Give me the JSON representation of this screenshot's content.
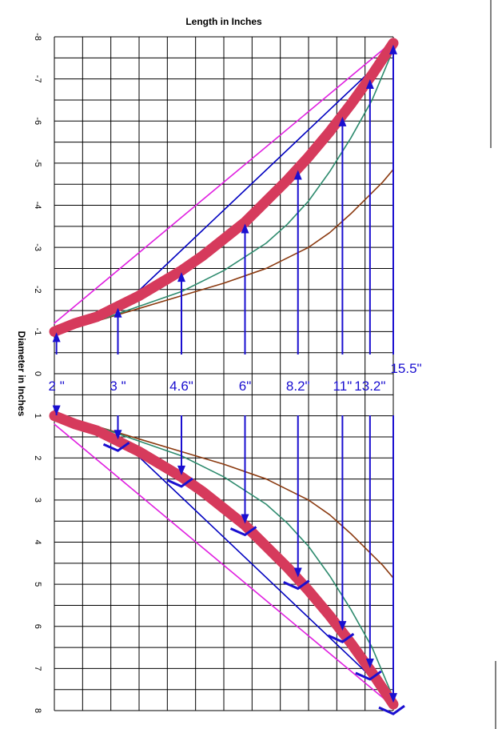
{
  "chart_data": {
    "type": "line",
    "title": "Length in Inches",
    "ylabel": "Diameter in Inches",
    "xlim": [
      0,
      16
    ],
    "ylim": [
      8,
      -8
    ],
    "y_ticks": [
      "8",
      "7",
      "6",
      "5",
      "4",
      "3",
      "2",
      "1",
      "0",
      "-1",
      "-2",
      "-3",
      "-4",
      "-5",
      "-6",
      "-7",
      "-8"
    ],
    "grid": true,
    "series": [
      {
        "color": "#d63a5c",
        "x": [
          0,
          1,
          2,
          3,
          4,
          5,
          6,
          7,
          8,
          9,
          10,
          11,
          12,
          13,
          14,
          15,
          16
        ],
        "values": [
          1.0,
          1.2,
          1.35,
          1.6,
          1.85,
          2.15,
          2.45,
          2.8,
          3.2,
          3.6,
          4.1,
          4.6,
          5.15,
          5.75,
          6.4,
          7.1,
          7.85
        ]
      },
      {
        "color": "#2e8b6e",
        "x": [
          0,
          2,
          4,
          6,
          8,
          10,
          11,
          12,
          13,
          14,
          15,
          16
        ],
        "values": [
          1.0,
          1.25,
          1.6,
          1.95,
          2.45,
          3.1,
          3.55,
          4.1,
          4.8,
          5.6,
          6.5,
          7.7
        ]
      },
      {
        "color": "#8b3a10",
        "x": [
          0,
          2,
          4,
          6,
          8,
          10,
          12,
          13,
          14,
          15,
          15.5,
          16
        ],
        "values": [
          1.0,
          1.25,
          1.55,
          1.85,
          2.15,
          2.5,
          3.0,
          3.35,
          3.8,
          4.3,
          4.55,
          4.85
        ]
      },
      {
        "color": "#0000c0",
        "x": [
          0,
          3,
          16
        ],
        "values": [
          1.0,
          1.5,
          7.7
        ]
      },
      {
        "color": "#e020e0",
        "x": [
          0,
          16
        ],
        "values": [
          1.2,
          7.9
        ]
      }
    ],
    "annotations": [
      {
        "label": "2 \"",
        "x": 0.1
      },
      {
        "label": "3 \"",
        "x": 3.0
      },
      {
        "label": "4.6\"",
        "x": 6.0
      },
      {
        "label": "6\"",
        "x": 9.0
      },
      {
        "label": "8.2\"",
        "x": 11.5
      },
      {
        "label": "11\"",
        "x": 13.6
      },
      {
        "label": "13.2\"",
        "x": 14.9
      },
      {
        "label": "15.5\"",
        "x": 16.0
      }
    ]
  }
}
